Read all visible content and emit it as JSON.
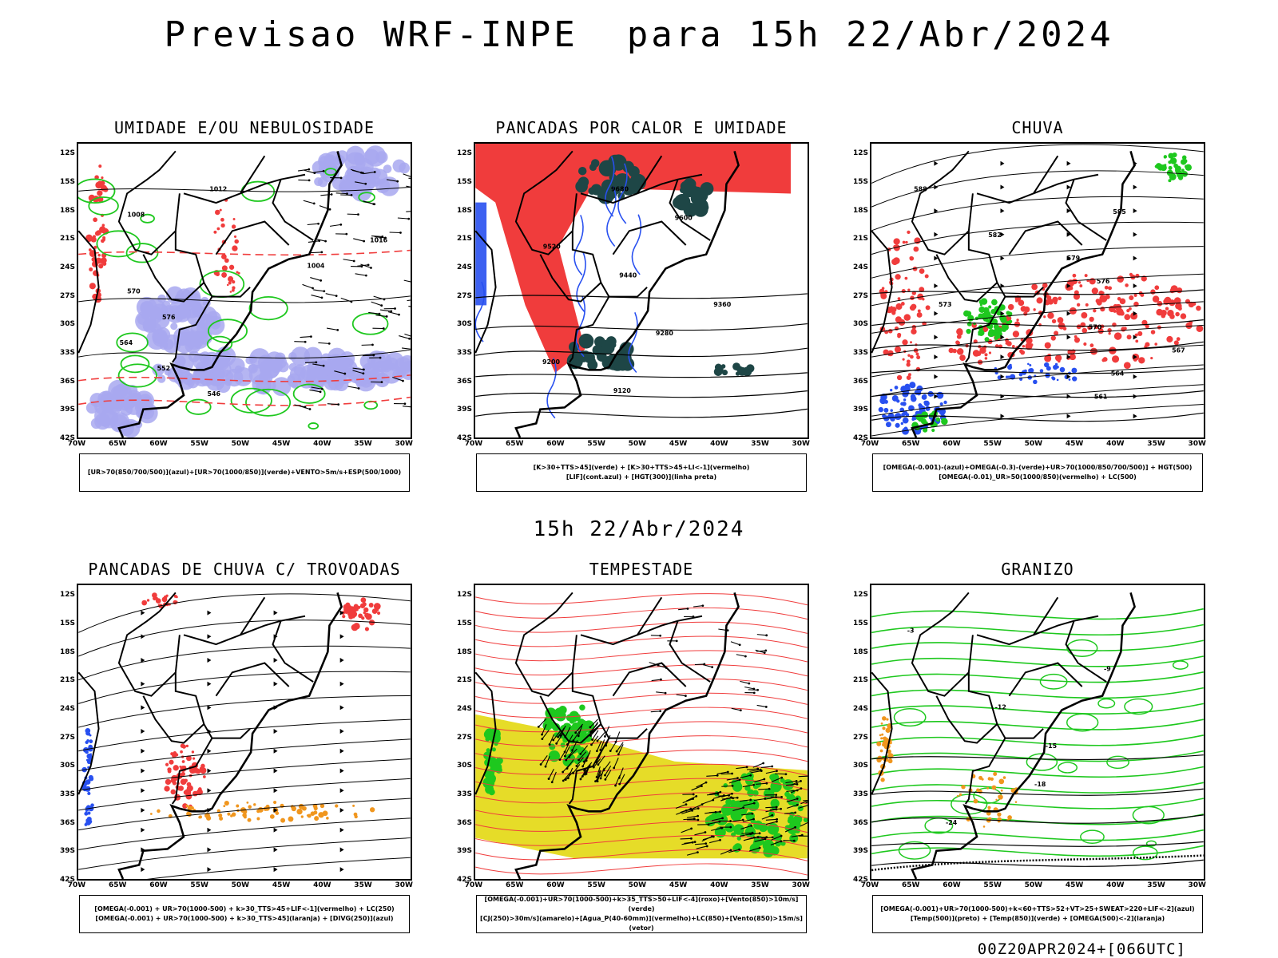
{
  "header": {
    "title": "Previsao WRF-INPE  para 15h 22/Abr/2024",
    "mid_date": "15h 22/Abr/2024",
    "footer": "00Z20APR2024+[066UTC]"
  },
  "axes": {
    "lat_labels": [
      "12S",
      "15S",
      "18S",
      "21S",
      "24S",
      "27S",
      "30S",
      "33S",
      "36S",
      "39S",
      "42S"
    ],
    "lon_labels": [
      "70W",
      "65W",
      "60W",
      "55W",
      "50W",
      "45W",
      "40W",
      "35W",
      "30W"
    ]
  },
  "colors": {
    "red": "#f03c3c",
    "green": "#1ec81e",
    "blue": "#2850f0",
    "lavender": "#a8a8f0",
    "darkteal": "#1e4646",
    "yellow": "#e6dc28",
    "orange": "#f0961e",
    "black": "#000000"
  },
  "panels": [
    {
      "id": "umidade",
      "title": "UMIDADE E/OU NEBULOSIDADE",
      "legend_lines": [
        "[UR>70(850/700/500)](azul)+[UR>70(1000/850)](verde)+VENTO>5m/s+ESP(500/1000)"
      ],
      "contour_labels": [
        "1012",
        "1008",
        "1016",
        "1004",
        "570",
        "576",
        "564",
        "552",
        "546"
      ]
    },
    {
      "id": "pancadas-calor",
      "title": "PANCADAS POR CALOR E UMIDADE",
      "legend_lines": [
        "[K>30+TTS>45](verde) + [K>30+TTS>45+LI<-1](vermelho)",
        "[LIF](cont.azul) + [HGT(300)](linha preta)"
      ],
      "contour_labels": [
        "9680",
        "9600",
        "9520",
        "9440",
        "9360",
        "9280",
        "9200",
        "9120"
      ]
    },
    {
      "id": "chuva",
      "title": "CHUVA",
      "legend_lines": [
        "[OMEGA(-0.001)-(azul)+OMEGA(-0.3)-(verde)+UR>70(1000/850/700/500)] + HGT(500)",
        "[OMEGA(-0.01)_UR>50(1000/850)(vermelho) + LC(500)"
      ],
      "contour_labels": [
        "588",
        "585",
        "582",
        "579",
        "576",
        "573",
        "570",
        "567",
        "564",
        "561"
      ]
    },
    {
      "id": "pancadas-trovoadas",
      "title": "PANCADAS DE CHUVA C/ TROVOADAS",
      "legend_lines": [
        "[OMEGA(-0.001) + UR>70(1000-500) + k>30_TTS>45+LIF<-1](vermelho) + LC(250)",
        "[OMEGA(-0.001) + UR>70(1000-500) + k>30_TTS>45](laranja) + [DIVG(250)](azul)"
      ],
      "contour_labels": []
    },
    {
      "id": "tempestade",
      "title": "TEMPESTADE",
      "legend_lines": [
        "[OMEGA(-0.001)+UR>70(1000-500)+k>35_TTS>50+LIF<-4](roxo)+[Vento(850)>10m/s](verde)",
        "[CJ(250)>30m/s](amarelo)+[Agua_P(40-60mm)](vermelho)+LC(850)+[Vento(850)>15m/s](vetor)"
      ],
      "contour_labels": []
    },
    {
      "id": "granizo",
      "title": "GRANIZO",
      "legend_lines": [
        "[OMEGA(-0.001)+UR>70(1000-500)+k<60+TTS>52+VT>25+SWEAT>220+LIF<-2](azul)",
        "[Temp(500)](preto) + [Temp(850)](verde) + [OMEGA(500)<-2](laranja)"
      ],
      "contour_labels": [
        "-3",
        "-9",
        "-12",
        "-15",
        "-18",
        "-24"
      ]
    }
  ]
}
